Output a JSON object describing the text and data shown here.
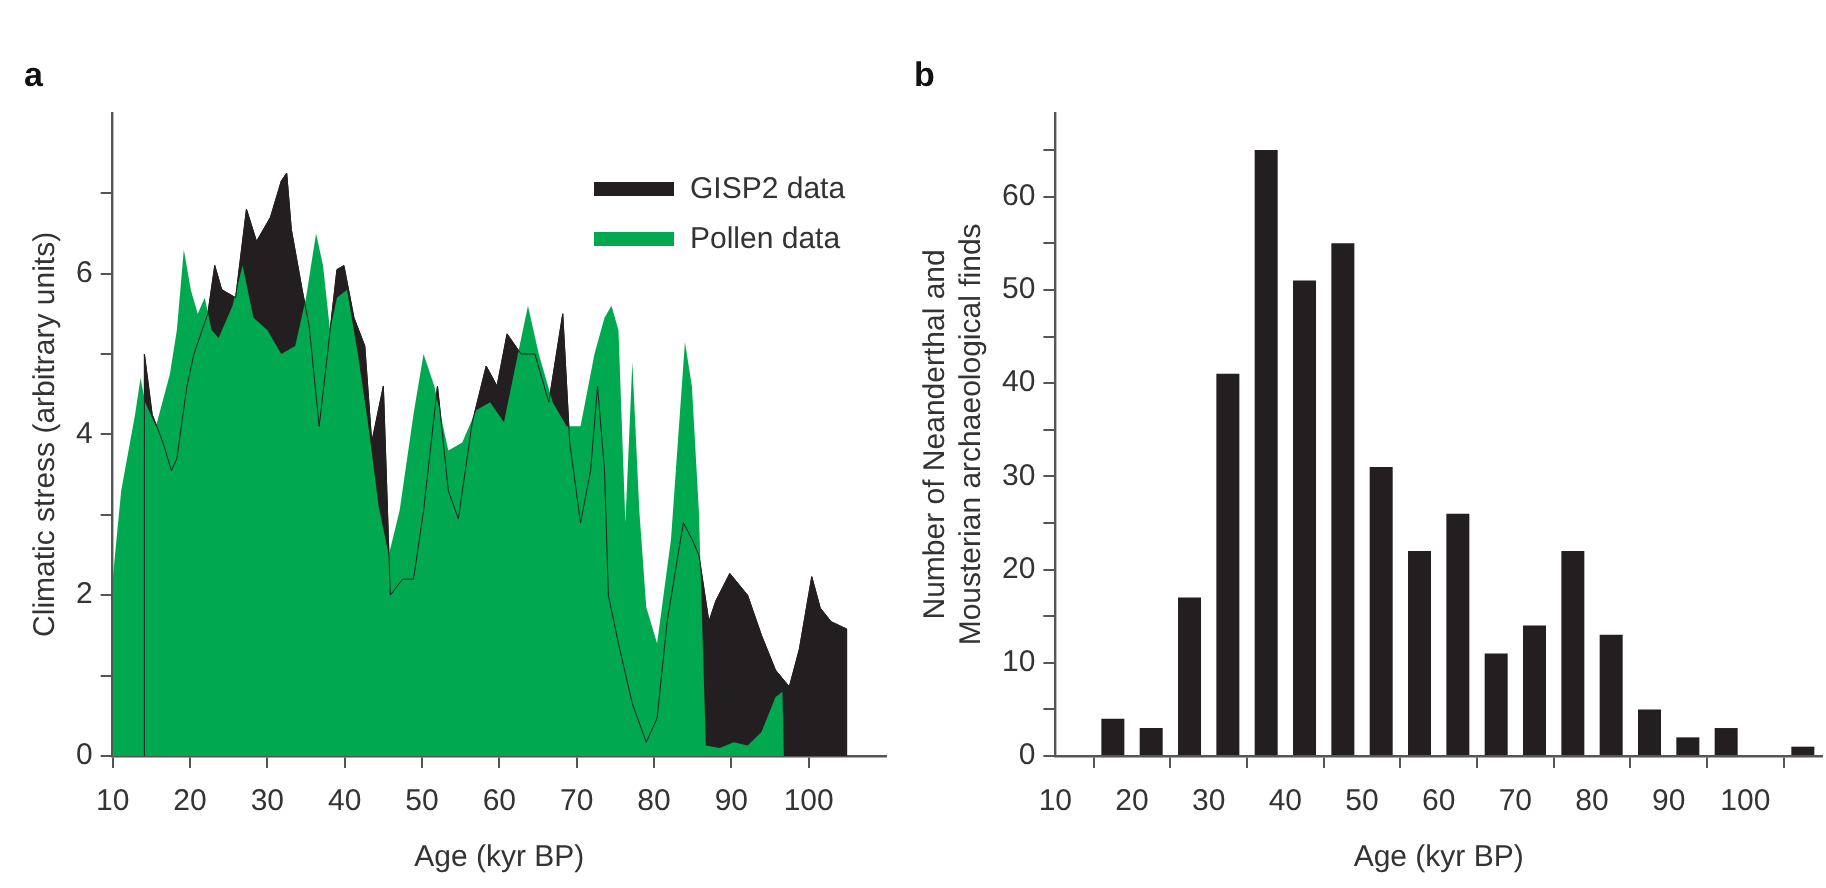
{
  "chart_data": [
    {
      "type": "area",
      "title": "a",
      "xlabel": "Age (kyr BP)",
      "ylabel": "Climatic stress (arbitrary units)",
      "xlim": [
        10,
        110
      ],
      "ylim": [
        0,
        8
      ],
      "xticks": [
        10,
        20,
        30,
        40,
        50,
        60,
        70,
        80,
        90,
        100
      ],
      "yticks": [
        0,
        {
          "value": 1,
          "label": null
        },
        2,
        {
          "value": 3,
          "label": null
        },
        4,
        {
          "value": 5,
          "label": null
        },
        6,
        {
          "value": 7,
          "label": null
        }
      ],
      "legend": "top right",
      "series": [
        {
          "name": "GISP2 data",
          "color": "#231f20",
          "x": [
            14.1,
            14.1,
            15.1,
            16.5,
            17.6,
            18.3,
            19.6,
            20.5,
            22.3,
            23.2,
            24.1,
            25.9,
            27.3,
            28.6,
            30.4,
            31.8,
            32.5,
            33.1,
            34.5,
            35.4,
            36.7,
            37.6,
            39,
            39.9,
            41.2,
            42.6,
            43.5,
            45.0,
            45.9,
            47.5,
            48.9,
            50.2,
            52,
            53.4,
            54.7,
            56.5,
            58.3,
            59.7,
            61,
            62.8,
            64.6,
            66.4,
            68.2,
            69.1,
            70.5,
            71.8,
            72.7,
            73.6,
            74.1,
            75.4,
            77.2,
            79,
            80.4,
            81.7,
            83.1,
            83.8,
            84.9,
            85.8,
            87.1,
            88,
            89.8,
            92.1,
            93.9,
            95.7,
            97.5,
            98.8,
            100.4,
            101.5,
            102.9,
            104.9,
            104.9
          ],
          "values": [
            0,
            5.0,
            4.25,
            3.9,
            3.55,
            3.7,
            4.6,
            5.0,
            5.5,
            6.1,
            5.8,
            5.7,
            6.8,
            6.4,
            6.7,
            7.15,
            7.25,
            6.55,
            5.8,
            5.35,
            4.1,
            4.85,
            6.05,
            6.1,
            5.45,
            5.1,
            3.9,
            4.6,
            2.0,
            2.2,
            2.2,
            3.05,
            4.6,
            3.3,
            2.95,
            4.15,
            4.85,
            4.6,
            5.25,
            5.0,
            5.0,
            4.4,
            5.5,
            3.9,
            2.9,
            3.55,
            4.6,
            3.55,
            2.0,
            1.4,
            0.65,
            0.17,
            0.47,
            1.67,
            2.5,
            2.9,
            2.7,
            2.5,
            1.67,
            1.93,
            2.27,
            2.0,
            1.5,
            1.07,
            0.86,
            1.33,
            2.23,
            1.84,
            1.67,
            1.58,
            0
          ]
        },
        {
          "name": "Pollen data",
          "color": "#00a84f",
          "x": [
            10,
            11.1,
            12.9,
            13.6,
            14.2,
            15.6,
            17.4,
            18.3,
            19.2,
            20.1,
            21,
            21.9,
            22.8,
            23.7,
            25.5,
            26.8,
            28.2,
            30,
            31.8,
            33.6,
            35,
            36.3,
            37.2,
            38.1,
            39,
            40.3,
            41.7,
            43,
            44.4,
            45.7,
            47.1,
            48.9,
            50.2,
            51.6,
            53.4,
            55.2,
            57,
            58.8,
            60.6,
            62.4,
            63.7,
            65.1,
            66.9,
            68.7,
            70.5,
            72.3,
            73.6,
            74.5,
            75.4,
            76.3,
            77.2,
            78.1,
            79,
            80.4,
            82.2,
            84,
            84.9,
            85.8,
            86.7,
            88.5,
            90.3,
            92.1,
            93.9,
            95.7,
            96.6,
            96.8
          ],
          "values": [
            2.2,
            3.3,
            4.25,
            4.7,
            4.4,
            4.1,
            4.75,
            5.3,
            6.3,
            5.8,
            5.5,
            5.7,
            5.3,
            5.2,
            5.6,
            6.1,
            5.45,
            5.3,
            5.0,
            5.1,
            5.7,
            6.5,
            6.1,
            5.3,
            5.7,
            5.8,
            5.0,
            4.15,
            3.1,
            2.5,
            3.05,
            4.25,
            5.0,
            4.6,
            3.8,
            3.9,
            4.3,
            4.4,
            4.15,
            5.0,
            5.6,
            5.0,
            4.4,
            4.1,
            4.1,
            5.0,
            5.45,
            5.6,
            5.3,
            2.9,
            4.9,
            3.05,
            1.85,
            1.4,
            2.7,
            5.15,
            4.6,
            3.05,
            0.13,
            0.1,
            0.17,
            0.13,
            0.3,
            0.73,
            0.8,
            0
          ]
        }
      ]
    },
    {
      "type": "histogram",
      "title": "b",
      "xlabel": "Age (kyr BP)",
      "ylabel": "Number of Neanderthal and\nMousterian archaeological finds",
      "xlim": [
        10,
        110
      ],
      "ylim": [
        0,
        69
      ],
      "xticks": [
        10,
        20,
        30,
        40,
        50,
        60,
        70,
        80,
        90,
        100
      ],
      "yticks": [
        0,
        {
          "value": 5,
          "label": null
        },
        10,
        {
          "value": 15,
          "label": null
        },
        20,
        {
          "value": 25,
          "label": null
        },
        30,
        {
          "value": 35,
          "label": null
        },
        40,
        {
          "value": 45,
          "label": null
        },
        50,
        {
          "value": 55,
          "label": null
        },
        60,
        {
          "value": 65,
          "label": null
        }
      ],
      "color": "#231f20",
      "bins": [
        10,
        15,
        20,
        25,
        30,
        35,
        40,
        45,
        50,
        55,
        60,
        65,
        70,
        75,
        80,
        85,
        90,
        95,
        100,
        105,
        110
      ],
      "values": [
        0,
        4,
        3,
        17,
        41,
        65,
        51,
        55,
        31,
        22,
        26,
        11,
        14,
        22,
        13,
        5,
        2,
        3,
        0,
        1
      ]
    }
  ]
}
